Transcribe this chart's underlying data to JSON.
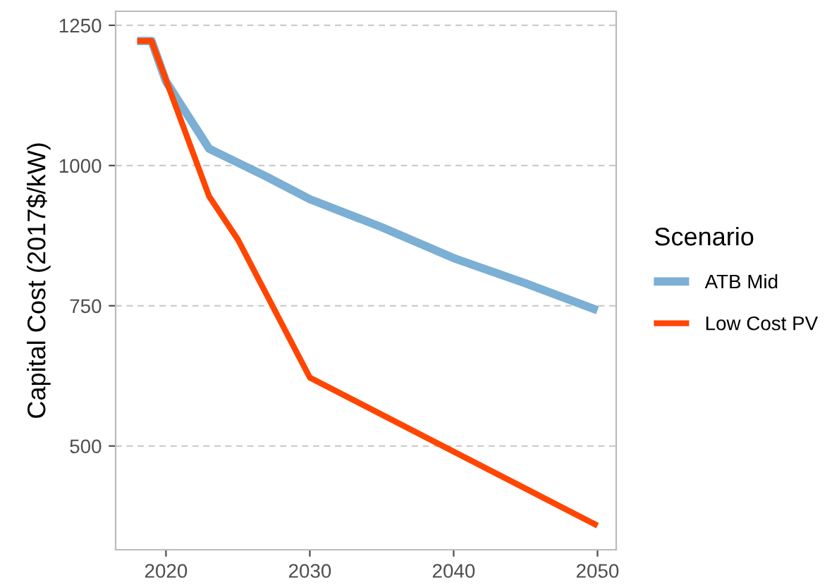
{
  "chart_data": {
    "type": "line",
    "ylabel": "Capital Cost (2017$/kW)",
    "legend_title": "Scenario",
    "xlim": [
      2016.5,
      2051.3
    ],
    "ylim": [
      315,
      1275
    ],
    "xticks": [
      2020,
      2030,
      2040,
      2050
    ],
    "yticks": [
      500,
      750,
      1000,
      1250
    ],
    "grid": "y",
    "legend": "right",
    "marker": "none",
    "line_style": "solid",
    "series": [
      {
        "name": "ATB Mid",
        "color": "#7bafd4",
        "x": [
          2018,
          2019,
          2020,
          2021,
          2022,
          2023,
          2025,
          2027,
          2030,
          2035,
          2040,
          2045,
          2050
        ],
        "values": [
          1222,
          1222,
          1150,
          1110,
          1070,
          1030,
          1005,
          980,
          940,
          890,
          835,
          790,
          742
        ]
      },
      {
        "name": "Low Cost PV",
        "color": "#ff4500",
        "x": [
          2018,
          2019,
          2023,
          2025,
          2030,
          2040,
          2050
        ],
        "values": [
          1222,
          1222,
          945,
          868,
          622,
          490,
          358
        ]
      }
    ]
  }
}
